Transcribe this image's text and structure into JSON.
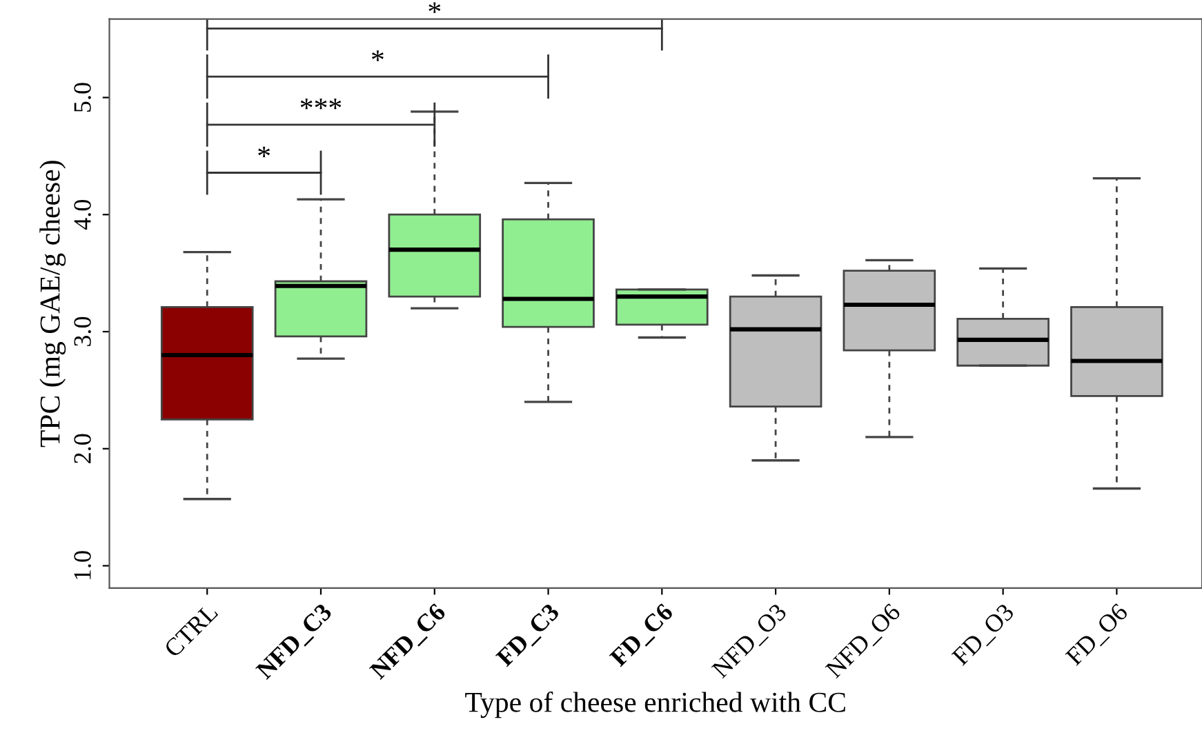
{
  "chart_data": {
    "type": "box",
    "xlabel": "Type of cheese enriched with CC",
    "ylabel": "TPC (mg GAE/g cheese)",
    "categories": [
      "CTRL",
      "NFD_C3",
      "NFD_C6",
      "FD_C3",
      "FD_C6",
      "NFD_O3",
      "NFD_O6",
      "FD_O3",
      "FD_O6"
    ],
    "colors": [
      "#8b0000",
      "#90ee90",
      "#90ee90",
      "#90ee90",
      "#90ee90",
      "#bebebe",
      "#bebebe",
      "#bebebe",
      "#bebebe"
    ],
    "boxes": [
      {
        "low": 1.57,
        "q1": 2.25,
        "median": 2.8,
        "q3": 3.21,
        "high": 3.68
      },
      {
        "low": 2.77,
        "q1": 2.96,
        "median": 3.39,
        "q3": 3.43,
        "high": 4.13
      },
      {
        "low": 3.2,
        "q1": 3.3,
        "median": 3.7,
        "q3": 4.0,
        "high": 4.88
      },
      {
        "low": 2.4,
        "q1": 3.04,
        "median": 3.28,
        "q3": 3.96,
        "high": 4.27
      },
      {
        "low": 2.95,
        "q1": 3.06,
        "median": 3.3,
        "q3": 3.36,
        "high": 3.36
      },
      {
        "low": 1.9,
        "q1": 2.36,
        "median": 3.02,
        "q3": 3.3,
        "high": 3.48
      },
      {
        "low": 2.1,
        "q1": 2.84,
        "median": 3.23,
        "q3": 3.52,
        "high": 3.61
      },
      {
        "low": 2.71,
        "q1": 2.71,
        "median": 2.93,
        "q3": 3.11,
        "high": 3.54
      },
      {
        "low": 1.66,
        "q1": 2.45,
        "median": 2.75,
        "q3": 3.21,
        "high": 4.31
      }
    ],
    "ylim": [
      0.81,
      5.67
    ],
    "yticks": [
      {
        "value": 1,
        "label": "1.0"
      },
      {
        "value": 2,
        "label": "2.0"
      },
      {
        "value": 3,
        "label": "3.0"
      },
      {
        "value": 4,
        "label": "4.0"
      },
      {
        "value": 5,
        "label": "5.0"
      }
    ],
    "annotations": [
      "*",
      "***",
      "*",
      "*"
    ],
    "grid": false,
    "legend": false
  }
}
